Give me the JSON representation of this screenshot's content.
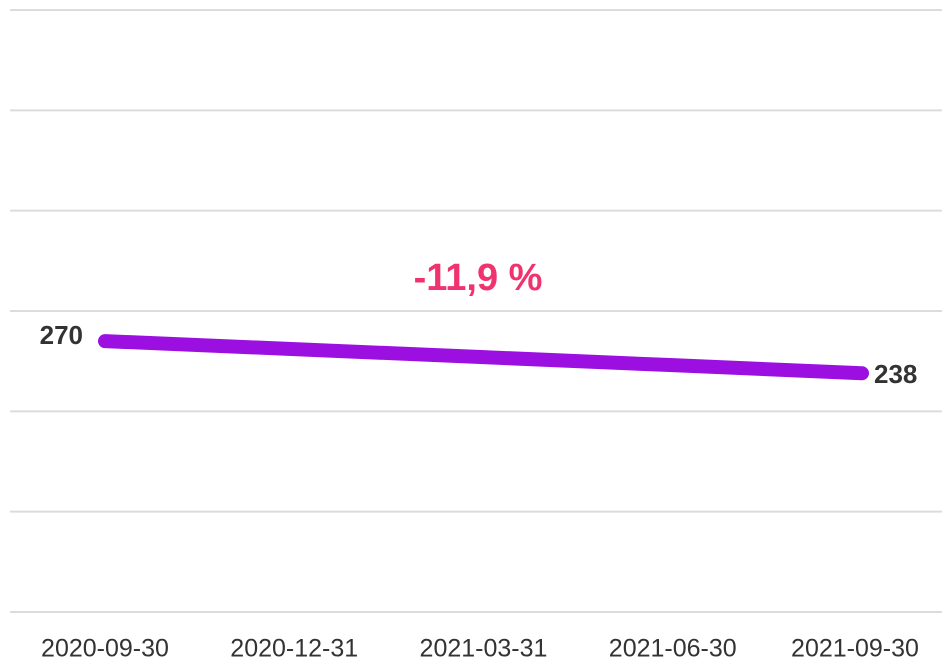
{
  "chart_data": {
    "type": "line",
    "categories": [
      "2020-09-30",
      "2020-12-31",
      "2021-03-31",
      "2021-06-30",
      "2021-09-30"
    ],
    "values": [
      270,
      262,
      254,
      246,
      238
    ],
    "color": "#9b10e0",
    "annotation": "-11,9 %",
    "ylim": [
      0,
      600
    ],
    "yticks": [
      0,
      100,
      200,
      300,
      400,
      500,
      600
    ],
    "grid": true
  }
}
